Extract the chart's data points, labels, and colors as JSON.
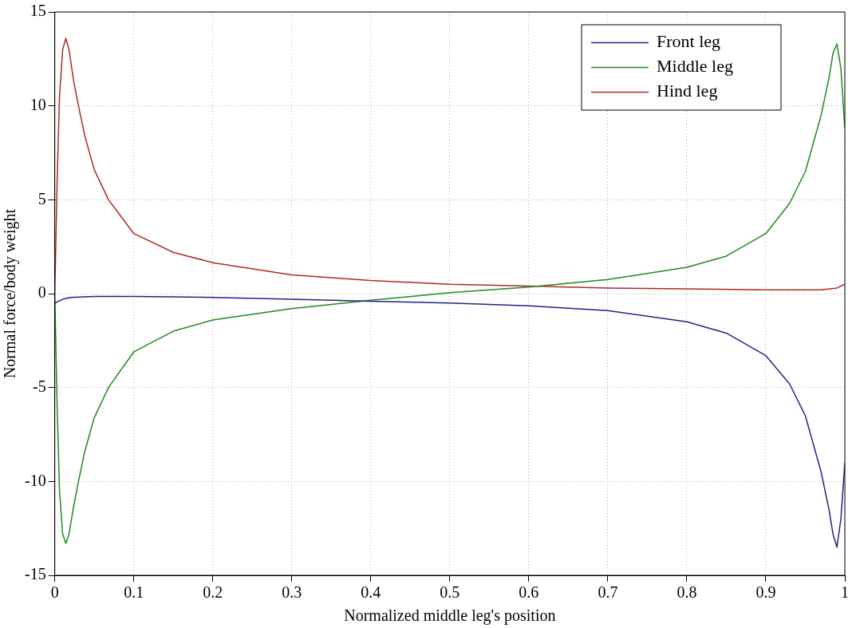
{
  "chart_data": {
    "type": "line",
    "xlabel": "Normalized middle leg's position",
    "ylabel": "Normal force/body weight",
    "xlim": [
      0,
      1
    ],
    "ylim": [
      -15,
      15
    ],
    "xticks": [
      0,
      0.1,
      0.2,
      0.3,
      0.4,
      0.5,
      0.6,
      0.7,
      0.8,
      0.9,
      1
    ],
    "yticks": [
      -15,
      -10,
      -5,
      0,
      5,
      10,
      15
    ],
    "grid": true,
    "legend": "top right",
    "marker": "none",
    "line_style": "solid",
    "series": [
      {
        "name": "Front leg",
        "color": "#22228a",
        "x": [
          0,
          0.005,
          0.01,
          0.02,
          0.05,
          0.1,
          0.2,
          0.3,
          0.4,
          0.5,
          0.6,
          0.7,
          0.8,
          0.85,
          0.9,
          0.93,
          0.95,
          0.97,
          0.98,
          0.985,
          0.99,
          0.995,
          1
        ],
        "values": [
          -0.5,
          -0.4,
          -0.3,
          -0.2,
          -0.15,
          -0.15,
          -0.2,
          -0.3,
          -0.4,
          -0.5,
          -0.65,
          -0.9,
          -1.5,
          -2.1,
          -3.3,
          -4.8,
          -6.5,
          -9.5,
          -11.5,
          -12.8,
          -13.5,
          -12,
          -9
        ]
      },
      {
        "name": "Middle leg",
        "color": "#1e8a1e",
        "x": [
          0,
          0.003,
          0.006,
          0.01,
          0.014,
          0.018,
          0.024,
          0.03,
          0.038,
          0.05,
          0.068,
          0.1,
          0.15,
          0.2,
          0.3,
          0.4,
          0.5,
          0.6,
          0.7,
          0.8,
          0.85,
          0.9,
          0.93,
          0.95,
          0.97,
          0.98,
          0.985,
          0.99,
          0.995,
          1
        ],
        "values": [
          0,
          -6,
          -10.5,
          -12.8,
          -13.3,
          -12.8,
          -11.3,
          -10,
          -8.4,
          -6.6,
          -5,
          -3.1,
          -2,
          -1.4,
          -0.8,
          -0.35,
          0.05,
          0.35,
          0.75,
          1.4,
          2,
          3.2,
          4.8,
          6.5,
          9.5,
          11.5,
          12.8,
          13.3,
          12,
          8.8
        ]
      },
      {
        "name": "Hind leg",
        "color": "#b02828",
        "x": [
          0,
          0.003,
          0.006,
          0.01,
          0.014,
          0.018,
          0.024,
          0.03,
          0.038,
          0.05,
          0.068,
          0.1,
          0.15,
          0.2,
          0.3,
          0.4,
          0.5,
          0.6,
          0.7,
          0.8,
          0.9,
          0.95,
          0.97,
          0.99,
          1
        ],
        "values": [
          0,
          6,
          10.5,
          13,
          13.6,
          13,
          11.3,
          10,
          8.4,
          6.6,
          5,
          3.2,
          2.2,
          1.65,
          1,
          0.7,
          0.5,
          0.4,
          0.3,
          0.25,
          0.2,
          0.2,
          0.2,
          0.3,
          0.5
        ]
      }
    ]
  }
}
